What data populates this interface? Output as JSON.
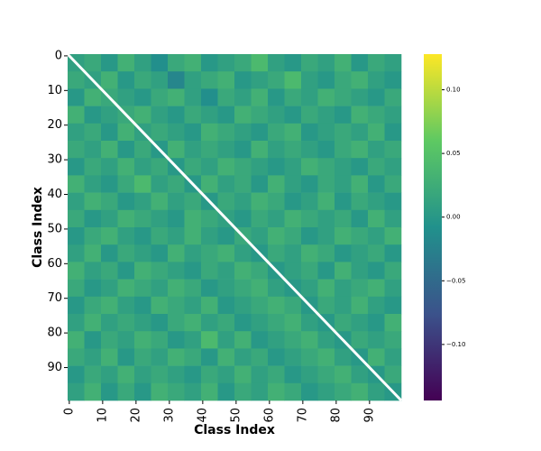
{
  "chart_data": {
    "type": "heatmap",
    "xlabel": "Class Index",
    "ylabel": "Class Index",
    "xlim": [
      0,
      100
    ],
    "ylim": [
      0,
      100
    ],
    "xticks": [
      0,
      10,
      20,
      30,
      40,
      50,
      60,
      70,
      80,
      90
    ],
    "yticks": [
      0,
      10,
      20,
      30,
      40,
      50,
      60,
      70,
      80,
      90
    ],
    "colormap": "viridis",
    "clim": [
      -0.144,
      0.128
    ],
    "cticks": [
      {
        "value": -0.1,
        "label": "−0.10"
      },
      {
        "value": -0.05,
        "label": "−0.05"
      },
      {
        "value": 0,
        "label": "0.00"
      },
      {
        "value": 0.05,
        "label": "0.05"
      },
      {
        "value": 0.1,
        "label": "0.10"
      }
    ],
    "block": 5,
    "values": [
      [
        0.01,
        0.02,
        0.0,
        0.03,
        0.01,
        -0.01,
        0.02,
        0.03,
        0.0,
        0.01,
        0.02,
        0.04,
        0.01,
        0.0,
        0.02,
        0.01,
        0.03,
        0.0,
        0.02,
        0.01
      ],
      [
        0.02,
        0.01,
        0.03,
        0.0,
        0.02,
        0.01,
        -0.02,
        0.01,
        0.02,
        0.03,
        0.0,
        0.01,
        0.02,
        0.04,
        0.01,
        0.0,
        0.02,
        0.03,
        0.01,
        0.0
      ],
      [
        0.0,
        0.03,
        0.02,
        0.01,
        0.0,
        0.02,
        0.03,
        0.01,
        -0.01,
        0.02,
        0.01,
        0.03,
        0.0,
        0.02,
        0.01,
        0.03,
        0.02,
        0.01,
        0.0,
        0.02
      ],
      [
        0.03,
        0.0,
        0.01,
        0.02,
        0.03,
        0.01,
        0.0,
        0.02,
        0.01,
        0.0,
        0.03,
        0.02,
        0.01,
        0.0,
        0.02,
        0.01,
        0.0,
        0.03,
        0.02,
        0.01
      ],
      [
        0.01,
        0.02,
        0.0,
        0.03,
        0.01,
        0.02,
        0.01,
        0.0,
        0.03,
        0.02,
        0.01,
        0.0,
        0.02,
        0.03,
        0.0,
        0.01,
        0.02,
        0.01,
        0.03,
        0.0
      ],
      [
        0.02,
        0.01,
        0.03,
        0.0,
        0.02,
        0.0,
        0.03,
        0.01,
        0.02,
        0.01,
        0.0,
        0.03,
        0.01,
        0.02,
        0.01,
        0.0,
        0.02,
        0.03,
        0.01,
        0.02
      ],
      [
        0.0,
        0.02,
        0.01,
        0.03,
        0.01,
        0.02,
        0.0,
        0.02,
        0.01,
        0.03,
        0.02,
        0.01,
        0.0,
        0.01,
        0.03,
        0.02,
        0.01,
        0.0,
        0.02,
        0.01
      ],
      [
        0.03,
        0.01,
        0.0,
        0.02,
        0.04,
        0.01,
        0.02,
        0.0,
        0.03,
        0.01,
        0.02,
        0.0,
        0.03,
        0.01,
        0.0,
        0.02,
        0.01,
        0.03,
        0.0,
        0.02
      ],
      [
        0.01,
        0.03,
        0.02,
        0.0,
        0.01,
        0.03,
        0.01,
        0.02,
        0.0,
        0.02,
        0.01,
        0.03,
        0.02,
        0.0,
        0.01,
        0.03,
        0.0,
        0.02,
        0.01,
        0.0
      ],
      [
        0.02,
        0.0,
        0.01,
        0.03,
        0.02,
        0.01,
        0.0,
        0.03,
        0.02,
        0.01,
        0.0,
        0.02,
        0.01,
        0.03,
        0.02,
        0.01,
        0.02,
        0.0,
        0.03,
        0.01
      ],
      [
        0.0,
        0.02,
        0.03,
        0.01,
        0.0,
        0.02,
        0.01,
        0.03,
        0.01,
        0.0,
        0.02,
        0.01,
        0.03,
        0.02,
        0.0,
        0.01,
        0.03,
        0.02,
        0.01,
        0.03
      ],
      [
        0.01,
        0.03,
        0.0,
        0.02,
        0.01,
        0.0,
        0.03,
        0.01,
        0.02,
        0.03,
        0.01,
        0.0,
        0.02,
        0.01,
        0.03,
        0.02,
        0.0,
        0.01,
        0.02,
        0.0
      ],
      [
        0.03,
        0.01,
        0.02,
        0.0,
        0.03,
        0.02,
        0.01,
        0.0,
        0.02,
        0.01,
        0.03,
        0.02,
        0.0,
        0.01,
        0.02,
        0.0,
        0.03,
        0.01,
        0.0,
        0.02
      ],
      [
        0.02,
        0.0,
        0.01,
        0.03,
        0.02,
        0.01,
        0.03,
        0.02,
        0.0,
        0.01,
        0.02,
        0.03,
        0.01,
        0.0,
        0.01,
        0.03,
        0.01,
        0.02,
        0.03,
        0.01
      ],
      [
        0.0,
        0.02,
        0.03,
        0.01,
        0.0,
        0.03,
        0.02,
        0.01,
        0.03,
        0.0,
        0.01,
        0.02,
        0.03,
        0.02,
        0.0,
        0.02,
        0.01,
        0.03,
        0.01,
        0.0
      ],
      [
        0.01,
        0.03,
        0.01,
        0.02,
        0.01,
        0.0,
        0.02,
        0.03,
        0.01,
        0.02,
        0.0,
        0.01,
        0.02,
        0.03,
        0.01,
        0.0,
        0.02,
        0.01,
        0.0,
        0.03
      ],
      [
        0.03,
        0.0,
        0.02,
        0.01,
        0.03,
        0.02,
        0.0,
        0.01,
        0.04,
        0.01,
        0.03,
        0.0,
        0.01,
        0.02,
        0.03,
        0.01,
        0.0,
        0.02,
        0.01,
        0.02
      ],
      [
        0.02,
        0.01,
        0.03,
        0.0,
        0.02,
        0.01,
        0.03,
        0.02,
        0.0,
        0.03,
        0.01,
        0.02,
        0.0,
        0.01,
        0.02,
        0.03,
        0.01,
        0.0,
        0.03,
        0.01
      ],
      [
        0.0,
        0.02,
        0.01,
        0.03,
        0.01,
        0.02,
        0.01,
        0.0,
        0.02,
        0.01,
        0.03,
        0.01,
        0.02,
        0.0,
        0.01,
        0.02,
        0.03,
        0.01,
        0.0,
        0.02
      ],
      [
        0.01,
        0.03,
        0.0,
        0.02,
        0.0,
        0.03,
        0.02,
        0.01,
        0.03,
        0.0,
        0.02,
        0.01,
        0.03,
        0.02,
        0.0,
        0.01,
        0.02,
        0.03,
        0.01,
        0.0
      ]
    ]
  }
}
